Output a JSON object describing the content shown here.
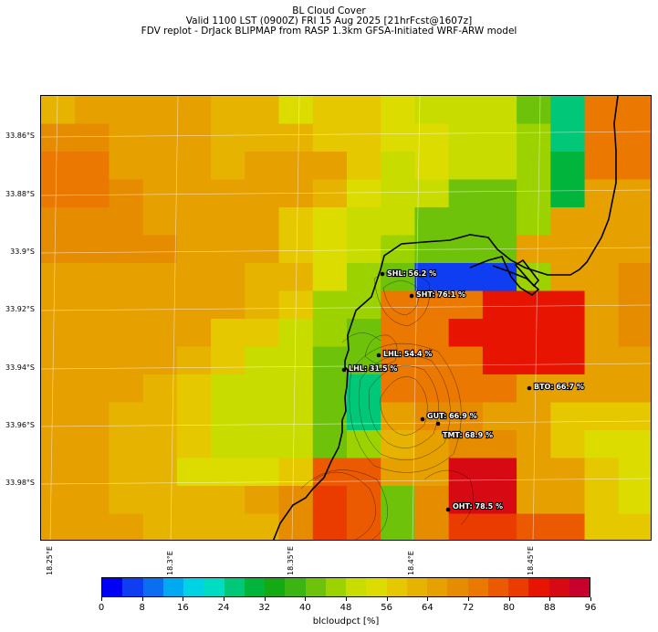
{
  "header": {
    "title": "BL Cloud Cover",
    "valid_line": "Valid 1100 LST (0900Z) FRI 15 Aug 2025 [21hrFcst@1607z]",
    "model_line": "FDV replot - DrJack BLIPMAP from RASP 1.3km GFSA-Initiated WRF-ARW model"
  },
  "map": {
    "lat_ticks": [
      "33.86°S",
      "33.88°S",
      "33.9°S",
      "33.92°S",
      "33.94°S",
      "33.96°S",
      "33.98°S"
    ],
    "lon_ticks": [
      "18.25°E",
      "18.3°E",
      "18.35°E",
      "18.4°E",
      "18.45°E"
    ],
    "stations": [
      {
        "name": "SHL: 56.2 %",
        "value": 56.2
      },
      {
        "name": "SHT: 76.1 %",
        "value": 76.1
      },
      {
        "name": "LHL: 54.4 %",
        "value": 54.4
      },
      {
        "name": "LHL: 31.5 %",
        "value": 31.5
      },
      {
        "name": "BTO: 66.7 %",
        "value": 66.7
      },
      {
        "name": "GUT: 66.9 %",
        "value": 66.9
      },
      {
        "name": "TMT: 68.9 %",
        "value": 68.9
      },
      {
        "name": "OHT: 78.5 %",
        "value": 78.5
      }
    ],
    "grid_rows": [
      "62 67 67 64 64 60 60 55 58 58 53 50 50 50 40 24 72 72",
      "70 70 67 64 64 60 60 60 58 58 53 53 50 50 45 24 72 72",
      "72 72 67 64 64 60 64 64 64 58 48 53 50 50 45 30 72 72",
      "72 72 70 64 64 64 64 64 60 52 48 48 40 40 45 30 64 64",
      "70 70 70 64 64 64 64 58 52 48 48 40 40 40 45 64 64 64",
      "70 70 70 70 64 64 64 58 52 48 44 40 40 40 64 64 64 64",
      "64 64 64 64 64 64 60 60 52 44 40 4 4 4 45 64 64 68",
      "64 64 64 64 64 64 60 56 44 44 72 72 72 84 84 84 64 68",
      "64 64 64 64 64 56 56 48 44 40 72 72 84 84 84 84 64 68",
      "64 64 64 64 60 56 48 48 40 40 72 72 72 84 84 84 64 64",
      "64 64 64 60 56 48 48 48 40 24 72 72 72 72 64 64 64 64",
      "64 64 60 60 56 48 48 48 40 24 64 68 68 64 64 56 56 56",
      "64 64 60 60 56 48 48 48 40 44 60 64 68 68 64 56 52 52",
      "64 64 60 60 52 52 52 56 76 76 64 64 88 88 64 64 56 52",
      "64 64 60 60 60 60 64 68 80 76 40 68 88 88 64 64 56 52",
      "64 64 64 60 60 60 60 68 80 76 40 68 80 80 76 76 56 56"
    ]
  },
  "colorbar": {
    "label": "blcloudpct [%]",
    "ticks": [
      "0",
      "8",
      "16",
      "24",
      "32",
      "40",
      "48",
      "56",
      "64",
      "72",
      "80",
      "88",
      "96"
    ],
    "colors": [
      "#0000f5",
      "#0f3df2",
      "#0a6ef0",
      "#00aaf0",
      "#00d2e6",
      "#00dcc3",
      "#00c878",
      "#00b43c",
      "#14aa14",
      "#3cb414",
      "#6ec30a",
      "#9bd200",
      "#c8dc00",
      "#dcdc00",
      "#e6c800",
      "#e6b400",
      "#e6a000",
      "#e68c00",
      "#eb7800",
      "#eb5a00",
      "#eb3c00",
      "#e61400",
      "#d70a14",
      "#c8002d"
    ]
  }
}
